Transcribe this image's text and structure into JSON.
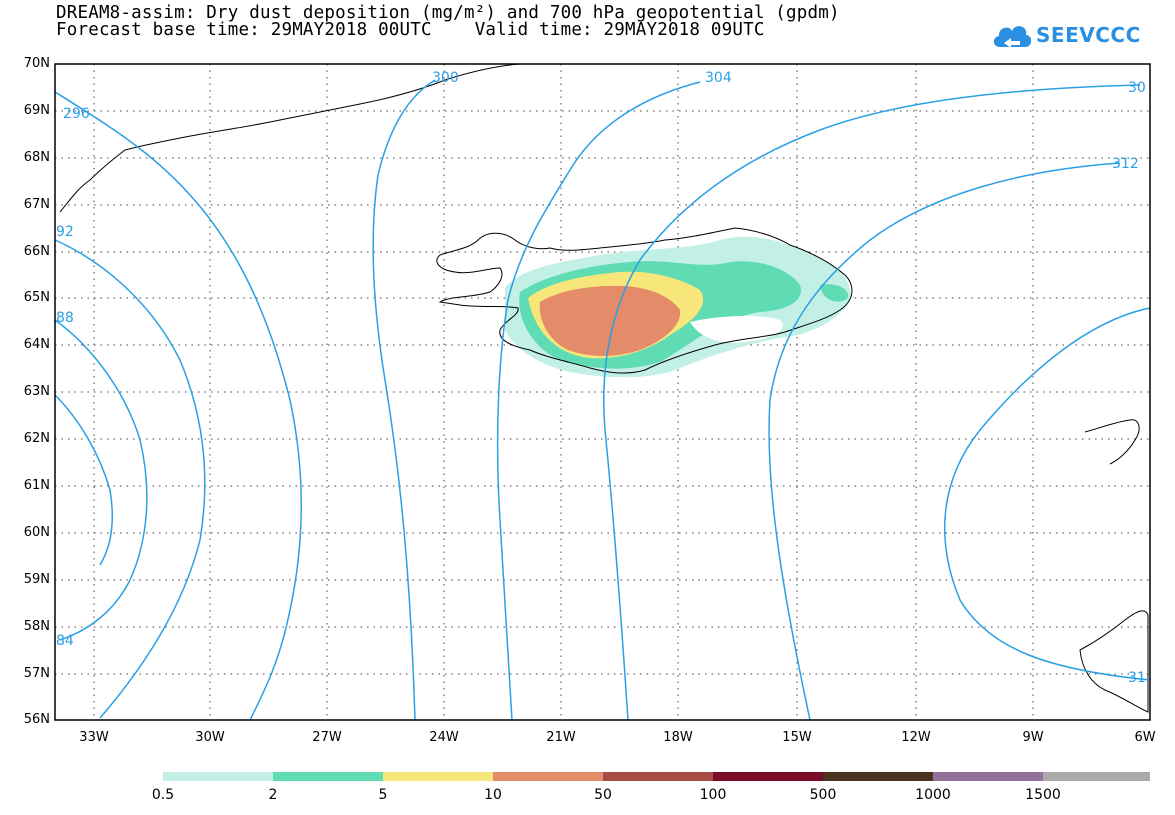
{
  "header": {
    "title_line1": "DREAM8-assim: Dry dust deposition (mg/m²) and 700 hPa geopotential (gpdm)",
    "title_line2": "Forecast base time: 29MAY2018 00UTC    Valid time: 29MAY2018 09UTC",
    "logo_text": "SEEVCCC"
  },
  "map": {
    "lat_labels": [
      "70N",
      "69N",
      "68N",
      "67N",
      "66N",
      "65N",
      "64N",
      "63N",
      "62N",
      "61N",
      "60N",
      "59N",
      "58N",
      "57N",
      "56N"
    ],
    "lon_labels": [
      "33W",
      "30W",
      "27W",
      "24W",
      "21W",
      "18W",
      "15W",
      "12W",
      "9W",
      "6W"
    ],
    "contour_labels": [
      "296",
      "300",
      "304",
      "30",
      "312",
      "92",
      "88",
      "84",
      "31"
    ]
  },
  "colorbar": {
    "labels": [
      "0.5",
      "2",
      "5",
      "10",
      "50",
      "100",
      "500",
      "1000",
      "1500"
    ],
    "colors": [
      "#c3f0e6",
      "#5fdcb4",
      "#f7e67a",
      "#e48b6a",
      "#a84d45",
      "#7a0c2a",
      "#4a3420",
      "#937099",
      "#aaaaaa"
    ]
  }
}
